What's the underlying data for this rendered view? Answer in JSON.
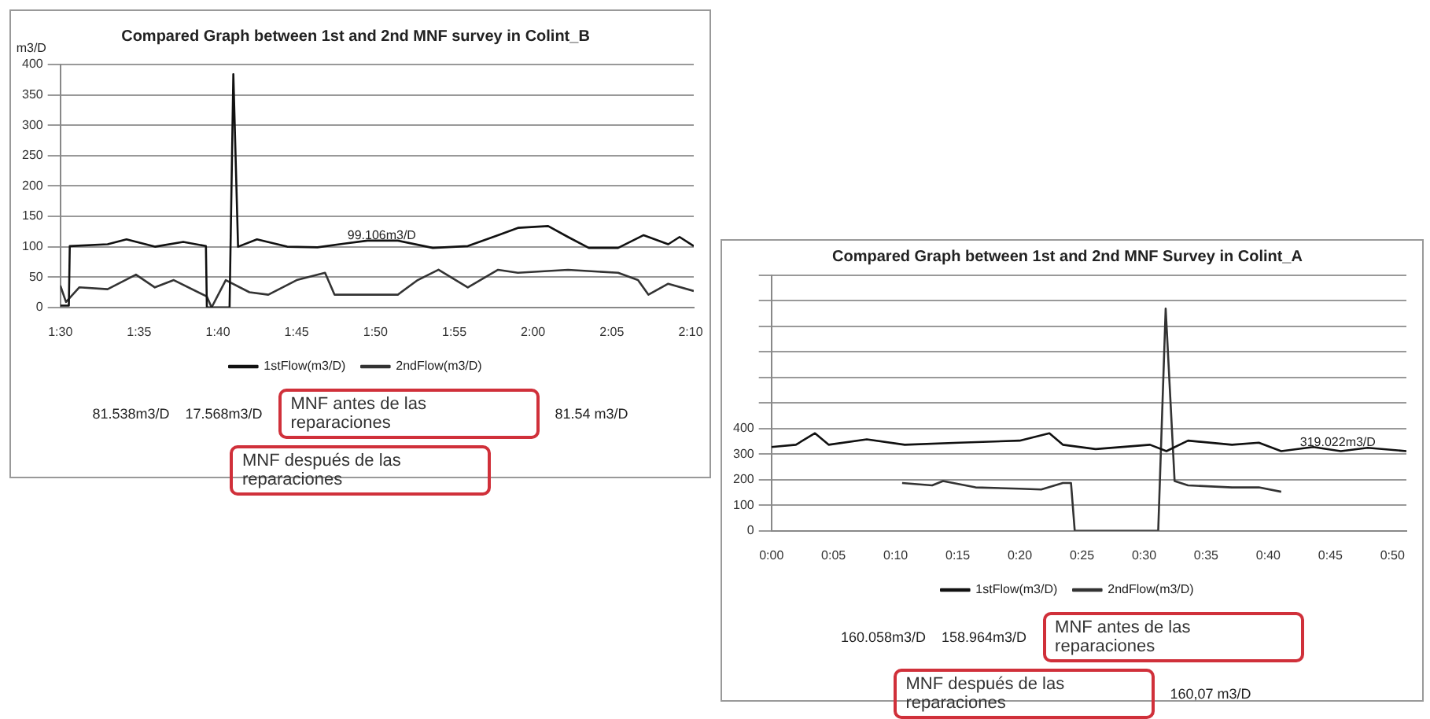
{
  "chart_data": [
    {
      "type": "line",
      "title": "Compared Graph between 1st and 2nd MNF survey in Colint_B",
      "ylabel": "m3/D",
      "xlim": [
        1.5,
        2.17
      ],
      "xticks": [
        {
          "value": 1.5,
          "label": "1:30"
        },
        {
          "value": 1.5833,
          "label": "1:35"
        },
        {
          "value": 1.6667,
          "label": "1:40"
        },
        {
          "value": 1.75,
          "label": "1:45"
        },
        {
          "value": 1.8333,
          "label": "1:50"
        },
        {
          "value": 1.9167,
          "label": "1:55"
        },
        {
          "value": 2,
          "label": "2:00"
        },
        {
          "value": 2.0833,
          "label": "2:05"
        },
        {
          "value": 2.1667,
          "label": "2:10"
        }
      ],
      "ylim": [
        0,
        400
      ],
      "yticks": [
        0,
        50,
        100,
        150,
        200,
        250,
        300,
        350,
        400
      ],
      "grid": "y",
      "legend": "bottom",
      "marker": "none",
      "line_style": "solid",
      "series": [
        {
          "name": "1stFlow(m3/D)",
          "color": "#111111",
          "x": [
            1.5,
            1.509,
            1.51,
            1.55,
            1.57,
            1.6,
            1.63,
            1.654,
            1.655,
            1.679,
            1.683,
            1.688,
            1.708,
            1.74,
            1.772,
            1.8,
            1.825,
            1.857,
            1.894,
            1.931,
            1.963,
            1.984,
            2.016,
            2.037,
            2.059,
            2.09,
            2.117,
            2.143,
            2.155,
            2.17
          ],
          "values": [
            3,
            3,
            101,
            104,
            112,
            100,
            108,
            101,
            0,
            0,
            384,
            100,
            112,
            100,
            99,
            105,
            110,
            110,
            98,
            101,
            119,
            131,
            134,
            116,
            98,
            98,
            119,
            104,
            116,
            101
          ]
        },
        {
          "name": "2ndFlow(m3/D)",
          "color": "#333333",
          "x": [
            1.5,
            1.506,
            1.52,
            1.55,
            1.58,
            1.6,
            1.62,
            1.655,
            1.66,
            1.675,
            1.7,
            1.72,
            1.75,
            1.78,
            1.79,
            1.825,
            1.857,
            1.878,
            1.9,
            1.931,
            1.963,
            1.984,
            2.037,
            2.09,
            2.111,
            2.122,
            2.143,
            2.17
          ],
          "values": [
            36,
            9,
            33,
            30,
            54,
            33,
            45,
            18,
            0,
            45,
            25,
            21,
            45,
            57,
            21,
            21,
            21,
            45,
            62,
            33,
            62,
            57,
            62,
            57,
            45,
            21,
            39,
            27
          ]
        }
      ],
      "annotations": [
        {
          "text": "99.106m3/D",
          "x": 1.84,
          "y": 118
        },
        "81.538m3/D",
        "17.568m3/D",
        "MNF antes de las reparaciones",
        "81.54 m3/D",
        "MNF después de las reparaciones"
      ]
    },
    {
      "type": "line",
      "title": "Compared Graph between 1st and 2nd MNF Survey in Colint_A",
      "xlim": [
        0,
        0.852
      ],
      "xticks": [
        {
          "value": 0,
          "label": "0:00"
        },
        {
          "value": 0.0833,
          "label": "0:05"
        },
        {
          "value": 0.1667,
          "label": "0:10"
        },
        {
          "value": 0.25,
          "label": "0:15"
        },
        {
          "value": 0.3333,
          "label": "0:20"
        },
        {
          "value": 0.4167,
          "label": "0:25"
        },
        {
          "value": 0.5,
          "label": "0:30"
        },
        {
          "value": 0.5833,
          "label": "0:35"
        },
        {
          "value": 0.6667,
          "label": "0:40"
        },
        {
          "value": 0.75,
          "label": "0:45"
        },
        {
          "value": 0.8333,
          "label": "0:50"
        }
      ],
      "ylim": [
        0,
        1000
      ],
      "yticks": [
        0,
        100,
        200,
        300,
        400,
        {
          "value": 500,
          "label": null
        },
        {
          "value": 600,
          "label": null
        },
        {
          "value": 700,
          "label": null
        },
        {
          "value": 800,
          "label": null
        },
        {
          "value": 900,
          "label": null
        },
        {
          "value": 1000,
          "label": null
        }
      ],
      "grid": "y",
      "legend": "bottom",
      "marker": "none",
      "line_style": "solid",
      "series": [
        {
          "name": "1stFlow(m3/D)",
          "color": "#111111",
          "x": [
            0,
            0.0329,
            0.0585,
            0.0768,
            0.128,
            0.179,
            0.252,
            0.333,
            0.373,
            0.391,
            0.435,
            0.508,
            0.53,
            0.559,
            0.618,
            0.654,
            0.684,
            0.727,
            0.764,
            0.8,
            0.852
          ],
          "values": [
            328,
            337,
            382,
            337,
            358,
            337,
            345,
            353,
            382,
            337,
            320,
            337,
            312,
            353,
            337,
            345,
            312,
            328,
            312,
            325,
            312
          ]
        },
        {
          "name": "2ndFlow(m3/D)",
          "color": "#333333",
          "x": [
            0.1754,
            0.2157,
            0.2303,
            0.274,
            0.333,
            0.362,
            0.391,
            0.402,
            0.407,
            0.519,
            0.529,
            0.541,
            0.559,
            0.618,
            0.654,
            0.684
          ],
          "values": [
            187,
            178,
            195,
            170,
            165,
            162,
            187,
            187,
            0,
            0,
            870,
            195,
            178,
            170,
            170,
            153
          ]
        }
      ],
      "annotations": [
        {
          "text": "319.022m3/D",
          "x": 0.76,
          "y": 345
        },
        "160.058m3/D",
        "158.964m3/D",
        "MNF antes de las reparaciones",
        "MNF después de las reparaciones",
        "160,07 m3/D"
      ]
    }
  ]
}
